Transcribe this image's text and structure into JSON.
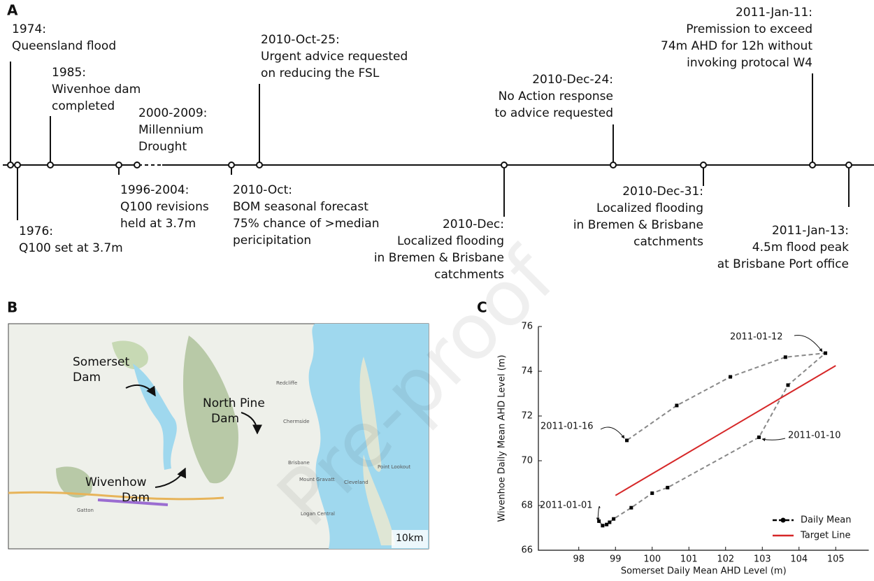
{
  "panel_labels": [
    "A",
    "B",
    "C"
  ],
  "watermark": "Pre-proof",
  "timeline": {
    "events": [
      {
        "lines": [
          "1974:",
          "Queensland flood"
        ]
      },
      {
        "lines": [
          "1976:",
          "Q100 set at 3.7m"
        ]
      },
      {
        "lines": [
          "1985:",
          "Wivenhoe dam",
          "completed"
        ]
      },
      {
        "lines": [
          "1996-2004:",
          "Q100 revisions",
          "held at 3.7m"
        ]
      },
      {
        "lines": [
          "2000-2009:",
          "Millennium",
          "Drought"
        ]
      },
      {
        "lines": [
          "2010-Oct:",
          "BOM seasonal forecast",
          "75% chance of >median",
          "pericipitation"
        ]
      },
      {
        "lines": [
          "2010-Oct-25:",
          "Urgent advice requested",
          "on reducing the FSL"
        ]
      },
      {
        "lines": [
          "2010-Dec:",
          "Localized flooding",
          "in Bremen & Brisbane",
          "catchments"
        ]
      },
      {
        "lines": [
          "2010-Dec-24:",
          "No Action response",
          "to advice requested"
        ]
      },
      {
        "lines": [
          "2010-Dec-31:",
          "Localized flooding",
          "in Bremen & Brisbane",
          "catchments"
        ]
      },
      {
        "lines": [
          "2011-Jan-11:",
          "Premission to exceed",
          "74m AHD for 12h without",
          "invoking protocal W4"
        ]
      },
      {
        "lines": [
          "2011-Jan-13:",
          "4.5m flood peak",
          "at Brisbane Port office"
        ]
      }
    ]
  },
  "map": {
    "labels": [
      [
        "Somerset",
        "Dam"
      ],
      [
        "North Pine",
        "Dam"
      ],
      [
        "Wivenhow",
        "Dam"
      ]
    ],
    "scale": "10km",
    "places": [
      "Redcliffe",
      "Chermside",
      "Brisbane",
      "Mount Gravatt",
      "Cleveland",
      "Logan Central",
      "Gatton",
      "Point Lookout"
    ]
  },
  "chart_data": {
    "type": "line",
    "xlabel": "Somerset Daily Mean AHD Level (m)",
    "ylabel": "Wivenhoe Daily Mean AHD Level (m)",
    "xlim": [
      96.9,
      105.9
    ],
    "ylim": [
      66,
      76
    ],
    "xticks": [
      98,
      99,
      100,
      101,
      102,
      103,
      104,
      105
    ],
    "yticks": [
      66,
      68,
      70,
      72,
      74,
      76
    ],
    "legend": "lower right",
    "series": [
      {
        "name": "Daily Mean",
        "color": "#888888",
        "marker_color": "#000000",
        "x": [
          98.55,
          98.65,
          98.76,
          98.84,
          98.95,
          99.43,
          100.0,
          100.42,
          102.91,
          103.7,
          104.72,
          103.63,
          102.13,
          100.67,
          99.31
        ],
        "values": [
          67.3,
          67.1,
          67.15,
          67.25,
          67.4,
          67.9,
          68.55,
          68.8,
          71.05,
          73.38,
          74.81,
          74.63,
          73.75,
          72.47,
          70.91
        ]
      },
      {
        "name": "Target Line",
        "color": "#d62728",
        "x": [
          99,
          105
        ],
        "values": [
          68.45,
          74.25
        ]
      }
    ],
    "annotations": [
      "2011-01-01",
      "2011-01-16",
      "2011-01-10",
      "2011-01-12"
    ]
  }
}
